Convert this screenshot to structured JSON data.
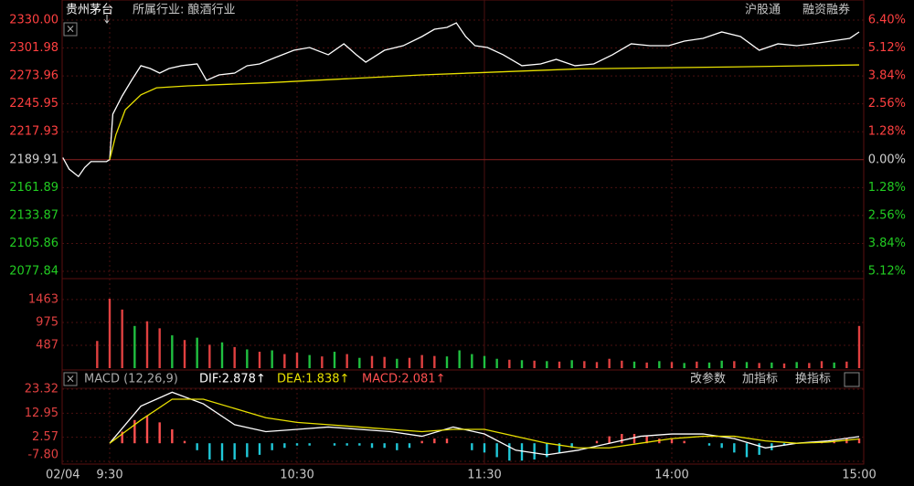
{
  "header": {
    "name": "贵州茅台",
    "industry": "所属行业: 酿酒行业",
    "links": [
      "沪股通",
      "融资融券"
    ],
    "close": "×"
  },
  "chart_data": [
    {
      "type": "line",
      "xlim": [
        -15,
        240
      ],
      "ylim": [
        2077.84,
        2330
      ],
      "y2lim": [
        -5.12,
        6.4
      ],
      "yticks": [
        {
          "value": 2330,
          "label": "2330.00"
        },
        2301.98,
        2273.96,
        2245.95,
        2217.93,
        2189.91,
        2161.89,
        2133.87,
        2105.86,
        2077.84
      ],
      "y2ticks": [
        {
          "value": 6.4,
          "label": "6.40%"
        },
        {
          "value": 5.12,
          "label": "5.12%"
        },
        {
          "value": 3.84,
          "label": "3.84%"
        },
        {
          "value": 2.56,
          "label": "2.56%"
        },
        {
          "value": 1.28,
          "label": "1.28%"
        },
        {
          "value": 0,
          "label": "0.00%"
        },
        {
          "value": -1.28,
          "label": "1.28%"
        },
        {
          "value": -2.56,
          "label": "2.56%"
        },
        {
          "value": -3.84,
          "label": "3.84%"
        },
        {
          "value": -5.12,
          "label": "5.12%"
        }
      ],
      "up_color": "#ff4040",
      "down_color": "#22cc22",
      "flat_color": "#d0d0d0",
      "grid": true,
      "series": [
        {
          "color": "#ffffff",
          "x": [
            -15,
            -13,
            -10,
            -8,
            -6,
            -1,
            0,
            1,
            4,
            7,
            10,
            13,
            16,
            19,
            23,
            28,
            31,
            35,
            40,
            44,
            48,
            53,
            59,
            64,
            70,
            75,
            79,
            82,
            88,
            94,
            100,
            104,
            108,
            111,
            114,
            117,
            121,
            126,
            132,
            138,
            143,
            149,
            155,
            161,
            167,
            173,
            179,
            184,
            190,
            196,
            202,
            208,
            214,
            220,
            225,
            231,
            237,
            240
          ],
          "values": [
            2192,
            2180.5,
            2173,
            2182,
            2188,
            2188,
            2190,
            2235.6,
            2253.9,
            2269.5,
            2284.2,
            2281.4,
            2276.8,
            2281.4,
            2284.2,
            2286,
            2269.5,
            2275,
            2276.8,
            2284.2,
            2286,
            2292.4,
            2299.7,
            2302.5,
            2295.2,
            2306.2,
            2295.2,
            2287.8,
            2299.7,
            2304.3,
            2313.5,
            2320.8,
            2322.7,
            2327.2,
            2313.5,
            2304.3,
            2302.5,
            2295.2,
            2284.2,
            2286,
            2290.6,
            2284.2,
            2286,
            2295.2,
            2306.2,
            2304.3,
            2304.3,
            2308.9,
            2311.7,
            2318.1,
            2313.5,
            2299.7,
            2306.2,
            2304.3,
            2306.2,
            2308.9,
            2311.7,
            2318.1
          ]
        },
        {
          "color": "#e8e000",
          "x": [
            0,
            2,
            5,
            10,
            15,
            25,
            50,
            100,
            150,
            200,
            240
          ],
          "values": [
            2190,
            2215,
            2240,
            2255,
            2262,
            2264,
            2267,
            2275,
            2281,
            2283,
            2285
          ]
        }
      ]
    },
    {
      "type": "bar",
      "xlim": [
        -15,
        240
      ],
      "ylim": [
        0,
        1812
      ],
      "yticks": [
        487,
        975,
        1463
      ],
      "x": [
        -4,
        0,
        4,
        8,
        12,
        16,
        20,
        24,
        28,
        32,
        36,
        40,
        44,
        48,
        52,
        56,
        60,
        64,
        68,
        72,
        76,
        80,
        84,
        88,
        92,
        96,
        100,
        104,
        108,
        112,
        116,
        120,
        124,
        128,
        132,
        136,
        140,
        144,
        148,
        152,
        156,
        160,
        164,
        168,
        172,
        176,
        180,
        184,
        188,
        192,
        196,
        200,
        204,
        208,
        212,
        216,
        220,
        224,
        228,
        232,
        236,
        240
      ],
      "values": [
        580,
        1480,
        1250,
        900,
        1000,
        850,
        700,
        600,
        650,
        500,
        550,
        450,
        400,
        350,
        380,
        300,
        330,
        280,
        250,
        350,
        300,
        220,
        260,
        240,
        200,
        220,
        280,
        260,
        250,
        380,
        300,
        260,
        200,
        180,
        170,
        160,
        150,
        140,
        170,
        150,
        130,
        200,
        160,
        140,
        120,
        150,
        130,
        110,
        140,
        120,
        160,
        150,
        130,
        110,
        120,
        100,
        130,
        110,
        150,
        120,
        140,
        900
      ],
      "colors": [
        "#e04040",
        "#e04040",
        "#e04040",
        "#20c040",
        "#e04040",
        "#e04040",
        "#20c040",
        "#e04040",
        "#20c040",
        "#e04040",
        "#20c040",
        "#e04040",
        "#20c040",
        "#e04040",
        "#20c040",
        "#e04040",
        "#e04040",
        "#20c040",
        "#e04040",
        "#20c040",
        "#e04040",
        "#20c040",
        "#e04040",
        "#e04040",
        "#20c040",
        "#e04040",
        "#e04040",
        "#e04040",
        "#20c040",
        "#20c040",
        "#20c040",
        "#20c040",
        "#20c040",
        "#e04040",
        "#20c040",
        "#e04040",
        "#20c040",
        "#e04040",
        "#20c040",
        "#e04040",
        "#e04040",
        "#e04040",
        "#e04040",
        "#20c040",
        "#e04040",
        "#20c040",
        "#e04040",
        "#20c040",
        "#e04040",
        "#20c040",
        "#20c040",
        "#e04040",
        "#20c040",
        "#e04040",
        "#20c040",
        "#e04040",
        "#20c040",
        "#e04040",
        "#e04040",
        "#20c040",
        "#e04040",
        "#e04040"
      ]
    },
    {
      "type": "macd",
      "title": "MACD (12,26,9)",
      "xlim": [
        -15,
        240
      ],
      "ylim": [
        -7.8,
        23.32
      ],
      "yticks": [
        23.32,
        12.95,
        2.57,
        {
          "value": -7.8,
          "label": "-7.80"
        }
      ],
      "xticks": [
        {
          "value": -15,
          "label": "02/04"
        },
        {
          "value": 0,
          "label": "9:30"
        },
        {
          "value": 60,
          "label": "10:30"
        },
        {
          "value": 120,
          "label": "11:30"
        },
        {
          "value": 180,
          "label": "14:00"
        },
        {
          "value": 240,
          "label": "15:00"
        }
      ],
      "buttons": [
        "改参数",
        "加指标",
        "换指标"
      ],
      "close": "×",
      "series": [
        {
          "name": "DIF:2.878↑",
          "color": "#ffffff",
          "x": [
            0,
            10,
            20,
            30,
            40,
            50,
            60,
            70,
            80,
            90,
            100,
            110,
            120,
            130,
            140,
            150,
            160,
            170,
            180,
            190,
            200,
            210,
            220,
            230,
            240
          ],
          "values": [
            0,
            16,
            22,
            17,
            8,
            5,
            6,
            7,
            6,
            5,
            3,
            7,
            4,
            -3,
            -5,
            -3,
            0,
            3,
            4,
            4,
            2,
            -2,
            0,
            1,
            2.878
          ]
        },
        {
          "name": "DEA:1.838↑",
          "color": "#e8e000",
          "x": [
            0,
            10,
            20,
            30,
            40,
            50,
            60,
            70,
            80,
            90,
            100,
            110,
            120,
            130,
            140,
            150,
            160,
            170,
            180,
            190,
            200,
            210,
            220,
            230,
            240
          ],
          "values": [
            0,
            10,
            19,
            19,
            15,
            11,
            9,
            8,
            7,
            6,
            5,
            6,
            6,
            3,
            0,
            -2,
            -2,
            0,
            2,
            3,
            3,
            1,
            0,
            0.5,
            1.838
          ]
        },
        {
          "name": "MACD:2.081↑",
          "color": "#ff5050",
          "down_color": "#20c8d8",
          "x": [
            0,
            4,
            8,
            12,
            16,
            20,
            24,
            28,
            32,
            36,
            40,
            44,
            48,
            52,
            56,
            60,
            64,
            68,
            72,
            76,
            80,
            84,
            88,
            92,
            96,
            100,
            104,
            108,
            112,
            116,
            120,
            124,
            128,
            132,
            136,
            140,
            144,
            148,
            152,
            156,
            160,
            164,
            168,
            172,
            176,
            180,
            184,
            188,
            192,
            196,
            200,
            204,
            208,
            212,
            216,
            220,
            224,
            228,
            232,
            236,
            240
          ],
          "values": [
            0,
            5,
            10,
            12,
            9,
            6,
            1,
            -3,
            -7,
            -7.5,
            -7,
            -6,
            -5,
            -3,
            -2,
            -1,
            -1,
            0,
            -1,
            -1,
            -1,
            -2,
            -2,
            -3,
            -2,
            1,
            2,
            2,
            0,
            -3,
            -4,
            -6,
            -7.5,
            -7.5,
            -7,
            -6,
            -4,
            -2,
            0,
            1,
            3,
            4,
            4,
            3,
            2,
            2,
            1,
            0,
            -1,
            -2,
            -4,
            -6,
            -5,
            -3,
            -1,
            0,
            0,
            1,
            1,
            2,
            2.081
          ]
        }
      ]
    }
  ]
}
